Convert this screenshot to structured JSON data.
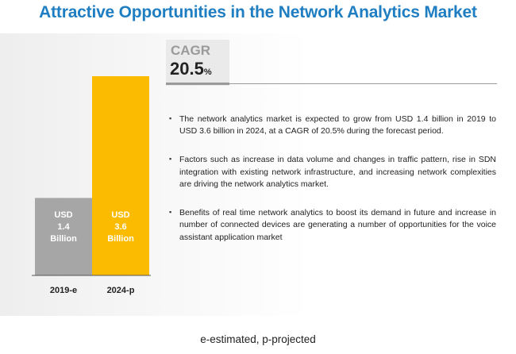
{
  "title": "Attractive Opportunities in the Network Analytics Market",
  "cagr": {
    "label": "CAGR",
    "value": "20.5",
    "unit": "%"
  },
  "chart_data": {
    "type": "bar",
    "categories": [
      "2019-e",
      "2024-p"
    ],
    "values": [
      1.4,
      3.6
    ],
    "data_labels": [
      [
        "USD",
        "1.4",
        "Billion"
      ],
      [
        "USD",
        "3.6",
        "Billion"
      ]
    ],
    "colors": [
      "#a6a6a6",
      "#fbbb00"
    ],
    "ylim": [
      0,
      3.6
    ],
    "grid": false,
    "title": "",
    "xlabel": "",
    "ylabel": ""
  },
  "bullets": [
    "The network analytics market is expected to grow from USD 1.4 billion in 2019 to USD 3.6 billion in 2024, at a CAGR of 20.5% during the forecast period.",
    "Factors such as increase in data volume and changes in traffic pattern, rise in SDN integration with existing network infrastructure, and increasing network complexities are driving the network analytics market.",
    "Benefits of real time network analytics to boost its demand in future and increase in number of connected devices are generating a number of opportunities for the voice assistant application market"
  ],
  "footnote": "e-estimated, p-projected"
}
